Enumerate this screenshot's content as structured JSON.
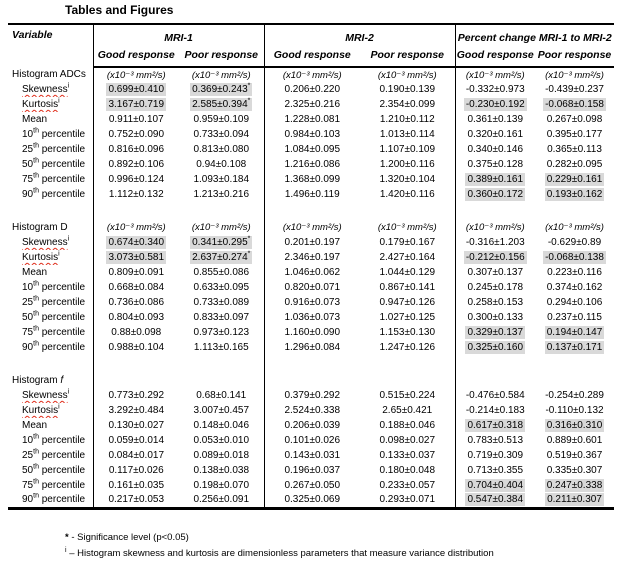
{
  "page_title": "Tables and Figures",
  "table": {
    "header": {
      "variable": "Variable",
      "mri1": "MRI-1",
      "mri2": "MRI-2",
      "pct": "Percent change MRI-1 to MRI-2",
      "good": "Good response",
      "poor": "Poor response"
    },
    "sections": [
      {
        "name": "Histogram ADCs",
        "name_em": "",
        "units": "(x10⁻³ mm²/s)",
        "rows": [
          {
            "main": "Skewness",
            "sup": "i",
            "rest": "",
            "misspelled": true,
            "cells": [
              {
                "t": "0.699±0.410",
                "hl": true
              },
              {
                "t": "0.369±0.243",
                "sup": "*",
                "hl": true
              },
              {
                "t": "0.206±0.220"
              },
              {
                "t": "0.190±0.139"
              },
              {
                "t": "-0.332±0.973"
              },
              {
                "t": "-0.439±0.237"
              }
            ]
          },
          {
            "main": "Kurtosis",
            "sup": "i",
            "rest": "",
            "misspelled": true,
            "cells": [
              {
                "t": "3.167±0.719",
                "hl": true
              },
              {
                "t": "2.585±0.394",
                "sup": "*",
                "hl": true
              },
              {
                "t": "2.325±0.216"
              },
              {
                "t": "2.354±0.099"
              },
              {
                "t": "-0.230±0.192",
                "hl": true
              },
              {
                "t": "-0.068±0.158",
                "hl": true
              }
            ]
          },
          {
            "main": "Mean",
            "sup": "",
            "rest": "",
            "misspelled": false,
            "cells": [
              {
                "t": "0.911±0.107"
              },
              {
                "t": "0.959±0.109"
              },
              {
                "t": "1.228±0.081"
              },
              {
                "t": "1.210±0.112"
              },
              {
                "t": "0.361±0.139"
              },
              {
                "t": "0.267±0.098"
              }
            ]
          },
          {
            "main": "10",
            "sup": "th",
            "rest": " percentile",
            "misspelled": false,
            "cells": [
              {
                "t": "0.752±0.090"
              },
              {
                "t": "0.733±0.094"
              },
              {
                "t": "0.984±0.103"
              },
              {
                "t": "1.013±0.114"
              },
              {
                "t": "0.320±0.161"
              },
              {
                "t": "0.395±0.177"
              }
            ]
          },
          {
            "main": "25",
            "sup": "th",
            "rest": " percentile",
            "misspelled": false,
            "cells": [
              {
                "t": "0.816±0.096"
              },
              {
                "t": "0.813±0.080"
              },
              {
                "t": "1.084±0.095"
              },
              {
                "t": "1.107±0.109"
              },
              {
                "t": "0.340±0.146"
              },
              {
                "t": "0.365±0.113"
              }
            ]
          },
          {
            "main": "50",
            "sup": "th",
            "rest": " percentile",
            "misspelled": false,
            "cells": [
              {
                "t": "0.892±0.106"
              },
              {
                "t": "0.94±0.108"
              },
              {
                "t": "1.216±0.086"
              },
              {
                "t": "1.200±0.116"
              },
              {
                "t": "0.375±0.128"
              },
              {
                "t": "0.282±0.095"
              }
            ]
          },
          {
            "main": "75",
            "sup": "th",
            "rest": " percentile",
            "misspelled": false,
            "cells": [
              {
                "t": "0.996±0.124"
              },
              {
                "t": "1.093±0.184"
              },
              {
                "t": "1.368±0.099"
              },
              {
                "t": "1.320±0.104"
              },
              {
                "t": "0.389±0.161",
                "hl": true
              },
              {
                "t": "0.229±0.161",
                "hl": true
              }
            ]
          },
          {
            "main": "90",
            "sup": "th",
            "rest": " percentile",
            "misspelled": false,
            "cells": [
              {
                "t": "1.112±0.132"
              },
              {
                "t": "1.213±0.216"
              },
              {
                "t": "1.496±0.119"
              },
              {
                "t": "1.420±0.116"
              },
              {
                "t": "0.360±0.172",
                "hl": true
              },
              {
                "t": "0.193±0.162",
                "hl": true
              }
            ]
          }
        ]
      },
      {
        "name": "Histogram D",
        "name_em": "",
        "units": "(x10⁻³ mm²/s)",
        "rows": [
          {
            "main": "Skewness",
            "sup": "i",
            "rest": "",
            "misspelled": true,
            "cells": [
              {
                "t": "0.674±0.340",
                "hl": true
              },
              {
                "t": "0.341±0.295",
                "sup": "*",
                "hl": true
              },
              {
                "t": "0.201±0.197"
              },
              {
                "t": "0.179±0.167"
              },
              {
                "t": "-0.316±1.203"
              },
              {
                "t": "-0.629±0.89"
              }
            ]
          },
          {
            "main": "Kurtosis",
            "sup": "i",
            "rest": "",
            "misspelled": true,
            "cells": [
              {
                "t": "3.073±0.581",
                "hl": true
              },
              {
                "t": "2.637±0.274",
                "sup": "*",
                "hl": true
              },
              {
                "t": "2.346±0.197"
              },
              {
                "t": "2.427±0.164"
              },
              {
                "t": "-0.212±0.156",
                "hl": true
              },
              {
                "t": "-0.068±0.138",
                "hl": true
              }
            ]
          },
          {
            "main": "Mean",
            "sup": "",
            "rest": "",
            "misspelled": false,
            "cells": [
              {
                "t": "0.809±0.091"
              },
              {
                "t": "0.855±0.086"
              },
              {
                "t": "1.046±0.062"
              },
              {
                "t": "1.044±0.129"
              },
              {
                "t": "0.307±0.137"
              },
              {
                "t": "0.223±0.116"
              }
            ]
          },
          {
            "main": "10",
            "sup": "th",
            "rest": " percentile",
            "misspelled": false,
            "cells": [
              {
                "t": "0.668±0.084"
              },
              {
                "t": "0.633±0.095"
              },
              {
                "t": "0.820±0.071"
              },
              {
                "t": "0.867±0.141"
              },
              {
                "t": "0.245±0.178"
              },
              {
                "t": "0.374±0.162"
              }
            ]
          },
          {
            "main": "25",
            "sup": "th",
            "rest": " percentile",
            "misspelled": false,
            "cells": [
              {
                "t": "0.736±0.086"
              },
              {
                "t": "0.733±0.089"
              },
              {
                "t": "0.916±0.073"
              },
              {
                "t": "0.947±0.126"
              },
              {
                "t": "0.258±0.153"
              },
              {
                "t": "0.294±0.106"
              }
            ]
          },
          {
            "main": "50",
            "sup": "th",
            "rest": " percentile",
            "misspelled": false,
            "cells": [
              {
                "t": "0.804±0.093"
              },
              {
                "t": "0.833±0.097"
              },
              {
                "t": "1.036±0.073"
              },
              {
                "t": "1.027±0.125"
              },
              {
                "t": "0.300±0.133"
              },
              {
                "t": "0.237±0.115"
              }
            ]
          },
          {
            "main": "75",
            "sup": "th",
            "rest": " percentile",
            "misspelled": false,
            "cells": [
              {
                "t": "0.88±0.098"
              },
              {
                "t": "0.973±0.123"
              },
              {
                "t": "1.160±0.090"
              },
              {
                "t": "1.153±0.130"
              },
              {
                "t": "0.329±0.137",
                "hl": true
              },
              {
                "t": "0.194±0.147",
                "hl": true
              }
            ]
          },
          {
            "main": "90",
            "sup": "th",
            "rest": " percentile",
            "misspelled": false,
            "cells": [
              {
                "t": "0.988±0.104"
              },
              {
                "t": "1.113±0.165"
              },
              {
                "t": "1.296±0.084"
              },
              {
                "t": "1.247±0.126"
              },
              {
                "t": "0.325±0.160",
                "hl": true
              },
              {
                "t": "0.137±0.171",
                "hl": true
              }
            ]
          }
        ]
      },
      {
        "name": "Histogram ",
        "name_em": "f",
        "units": "",
        "rows": [
          {
            "main": "Skewness",
            "sup": "i",
            "rest": "",
            "misspelled": true,
            "cells": [
              {
                "t": "0.773±0.292"
              },
              {
                "t": "0.68±0.141"
              },
              {
                "t": "0.379±0.292"
              },
              {
                "t": "0.515±0.224"
              },
              {
                "t": "-0.476±0.584"
              },
              {
                "t": "-0.254±0.289"
              }
            ]
          },
          {
            "main": "Kurtosis",
            "sup": "i",
            "rest": "",
            "misspelled": true,
            "cells": [
              {
                "t": "3.292±0.484"
              },
              {
                "t": "3.007±0.457"
              },
              {
                "t": "2.524±0.338"
              },
              {
                "t": "2.65±0.421"
              },
              {
                "t": "-0.214±0.183"
              },
              {
                "t": "-0.110±0.132"
              }
            ]
          },
          {
            "main": "Mean",
            "sup": "",
            "rest": "",
            "misspelled": false,
            "cells": [
              {
                "t": "0.130±0.027"
              },
              {
                "t": "0.148±0.046"
              },
              {
                "t": "0.206±0.039"
              },
              {
                "t": "0.188±0.046"
              },
              {
                "t": "0.617±0.318",
                "hl": true
              },
              {
                "t": "0.316±0.310",
                "hl": true
              }
            ]
          },
          {
            "main": "10",
            "sup": "th",
            "rest": " percentile",
            "misspelled": false,
            "cells": [
              {
                "t": "0.059±0.014"
              },
              {
                "t": "0.053±0.010"
              },
              {
                "t": "0.101±0.026"
              },
              {
                "t": "0.098±0.027"
              },
              {
                "t": "0.783±0.513"
              },
              {
                "t": "0.889±0.601"
              }
            ]
          },
          {
            "main": "25",
            "sup": "th",
            "rest": " percentile",
            "misspelled": false,
            "cells": [
              {
                "t": "0.084±0.017"
              },
              {
                "t": "0.089±0.018"
              },
              {
                "t": "0.143±0.031"
              },
              {
                "t": "0.133±0.037"
              },
              {
                "t": "0.719±0.309"
              },
              {
                "t": "0.519±0.367"
              }
            ]
          },
          {
            "main": "50",
            "sup": "th",
            "rest": " percentile",
            "misspelled": false,
            "cells": [
              {
                "t": "0.117±0.026"
              },
              {
                "t": "0.138±0.038"
              },
              {
                "t": "0.196±0.037"
              },
              {
                "t": "0.180±0.048"
              },
              {
                "t": "0.713±0.355"
              },
              {
                "t": "0.335±0.307"
              }
            ]
          },
          {
            "main": "75",
            "sup": "th",
            "rest": " percentile",
            "misspelled": false,
            "cells": [
              {
                "t": "0.161±0.035"
              },
              {
                "t": "0.198±0.070"
              },
              {
                "t": "0.267±0.050"
              },
              {
                "t": "0.233±0.057"
              },
              {
                "t": "0.704±0.404",
                "hl": true
              },
              {
                "t": "0.247±0.338",
                "hl": true
              }
            ]
          },
          {
            "main": "90",
            "sup": "th",
            "rest": " percentile",
            "misspelled": false,
            "cells": [
              {
                "t": "0.217±0.053"
              },
              {
                "t": "0.256±0.091"
              },
              {
                "t": "0.325±0.069"
              },
              {
                "t": "0.293±0.071"
              },
              {
                "t": "0.547±0.384",
                "hl": true
              },
              {
                "t": "0.211±0.307",
                "hl": true
              }
            ]
          }
        ]
      }
    ]
  },
  "footnotes": [
    {
      "marker": "*",
      "superscript": false,
      "text": " - Significance level (p<0.05)"
    },
    {
      "marker": "i",
      "superscript": true,
      "text": " – Histogram skewness and kurtosis are dimensionless parameters that measure variance distribution"
    }
  ],
  "colors": {
    "highlight": "#d9d9d9",
    "spellcheck_underline": "#e0301e",
    "text": "#000000"
  }
}
